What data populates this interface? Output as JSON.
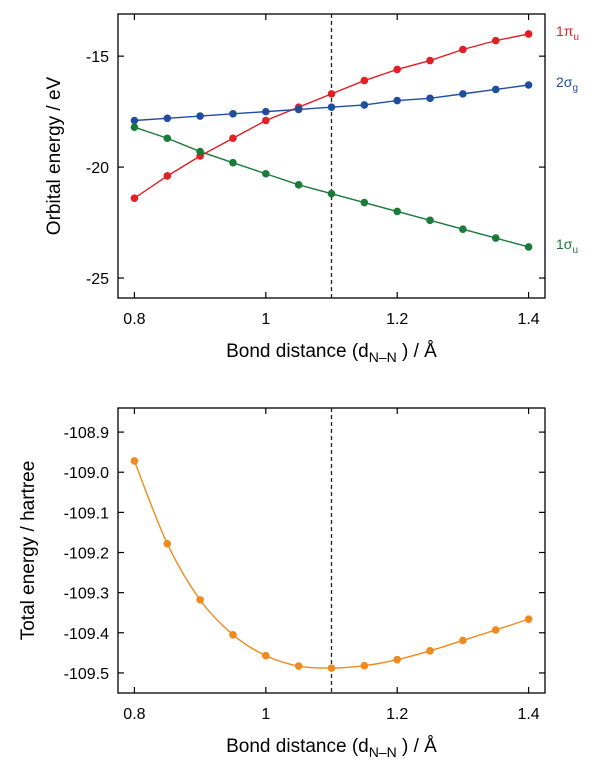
{
  "chart_data": [
    {
      "type": "line",
      "xlabel": {
        "main": "Bond distance (d",
        "sub": "N–N",
        "tail": ") / Å"
      },
      "ylabel": "Orbital energy / eV",
      "xlim": [
        0.775,
        1.425
      ],
      "ylim": [
        -25.9,
        -13.1
      ],
      "xticks": [
        "0.8",
        "1",
        "1.2",
        "1.4"
      ],
      "xtick_values": [
        0.8,
        1.0,
        1.2,
        1.4
      ],
      "yticks": [
        "-15",
        "-20",
        "-25"
      ],
      "ytick_values": [
        -15,
        -20,
        -25
      ],
      "reference_line_x": 1.1,
      "grid": false,
      "legend": "labels at right end of each series",
      "x": [
        0.8,
        0.85,
        0.9,
        0.95,
        1.0,
        1.05,
        1.1,
        1.15,
        1.2,
        1.25,
        1.3,
        1.35,
        1.4
      ],
      "series": [
        {
          "name": "1π",
          "sub": "u",
          "color": "#e31e24",
          "values": [
            -21.4,
            -20.4,
            -19.5,
            -18.7,
            -17.9,
            -17.3,
            -16.7,
            -16.1,
            -15.6,
            -15.2,
            -14.7,
            -14.3,
            -14.0
          ]
        },
        {
          "name": "2σ",
          "sub": "g",
          "color": "#1f4ea1",
          "values": [
            -17.9,
            -17.8,
            -17.7,
            -17.6,
            -17.5,
            -17.4,
            -17.3,
            -17.2,
            -17.0,
            -16.9,
            -16.7,
            -16.5,
            -16.3
          ]
        },
        {
          "name": "1σ",
          "sub": "u",
          "color": "#1a7a3a",
          "values": [
            -18.2,
            -18.7,
            -19.3,
            -19.8,
            -20.3,
            -20.8,
            -21.2,
            -21.6,
            -22.0,
            -22.4,
            -22.8,
            -23.2,
            -23.6
          ]
        }
      ]
    },
    {
      "type": "line",
      "xlabel": {
        "main": "Bond distance (d",
        "sub": "N–N",
        "tail": ") / Å"
      },
      "ylabel": "Total energy / hartree",
      "xlim": [
        0.775,
        1.425
      ],
      "ylim": [
        -109.55,
        -108.84
      ],
      "xticks": [
        "0.8",
        "1",
        "1.2",
        "1.4"
      ],
      "xtick_values": [
        0.8,
        1.0,
        1.2,
        1.4
      ],
      "yticks": [
        "-108.9",
        "-109.0",
        "-109.1",
        "-109.2",
        "-109.3",
        "-109.4",
        "-109.5"
      ],
      "ytick_values": [
        -108.9,
        -109.0,
        -109.1,
        -109.2,
        -109.3,
        -109.4,
        -109.5
      ],
      "reference_line_x": 1.1,
      "grid": false,
      "x": [
        0.8,
        0.85,
        0.9,
        0.95,
        1.0,
        1.05,
        1.1,
        1.15,
        1.2,
        1.25,
        1.3,
        1.35,
        1.4
      ],
      "series": [
        {
          "color": "#f08a1c",
          "values": [
            -108.972,
            -109.178,
            -109.318,
            -109.405,
            -109.457,
            -109.483,
            -109.488,
            -109.482,
            -109.467,
            -109.445,
            -109.419,
            -109.393,
            -109.366
          ]
        }
      ]
    }
  ]
}
